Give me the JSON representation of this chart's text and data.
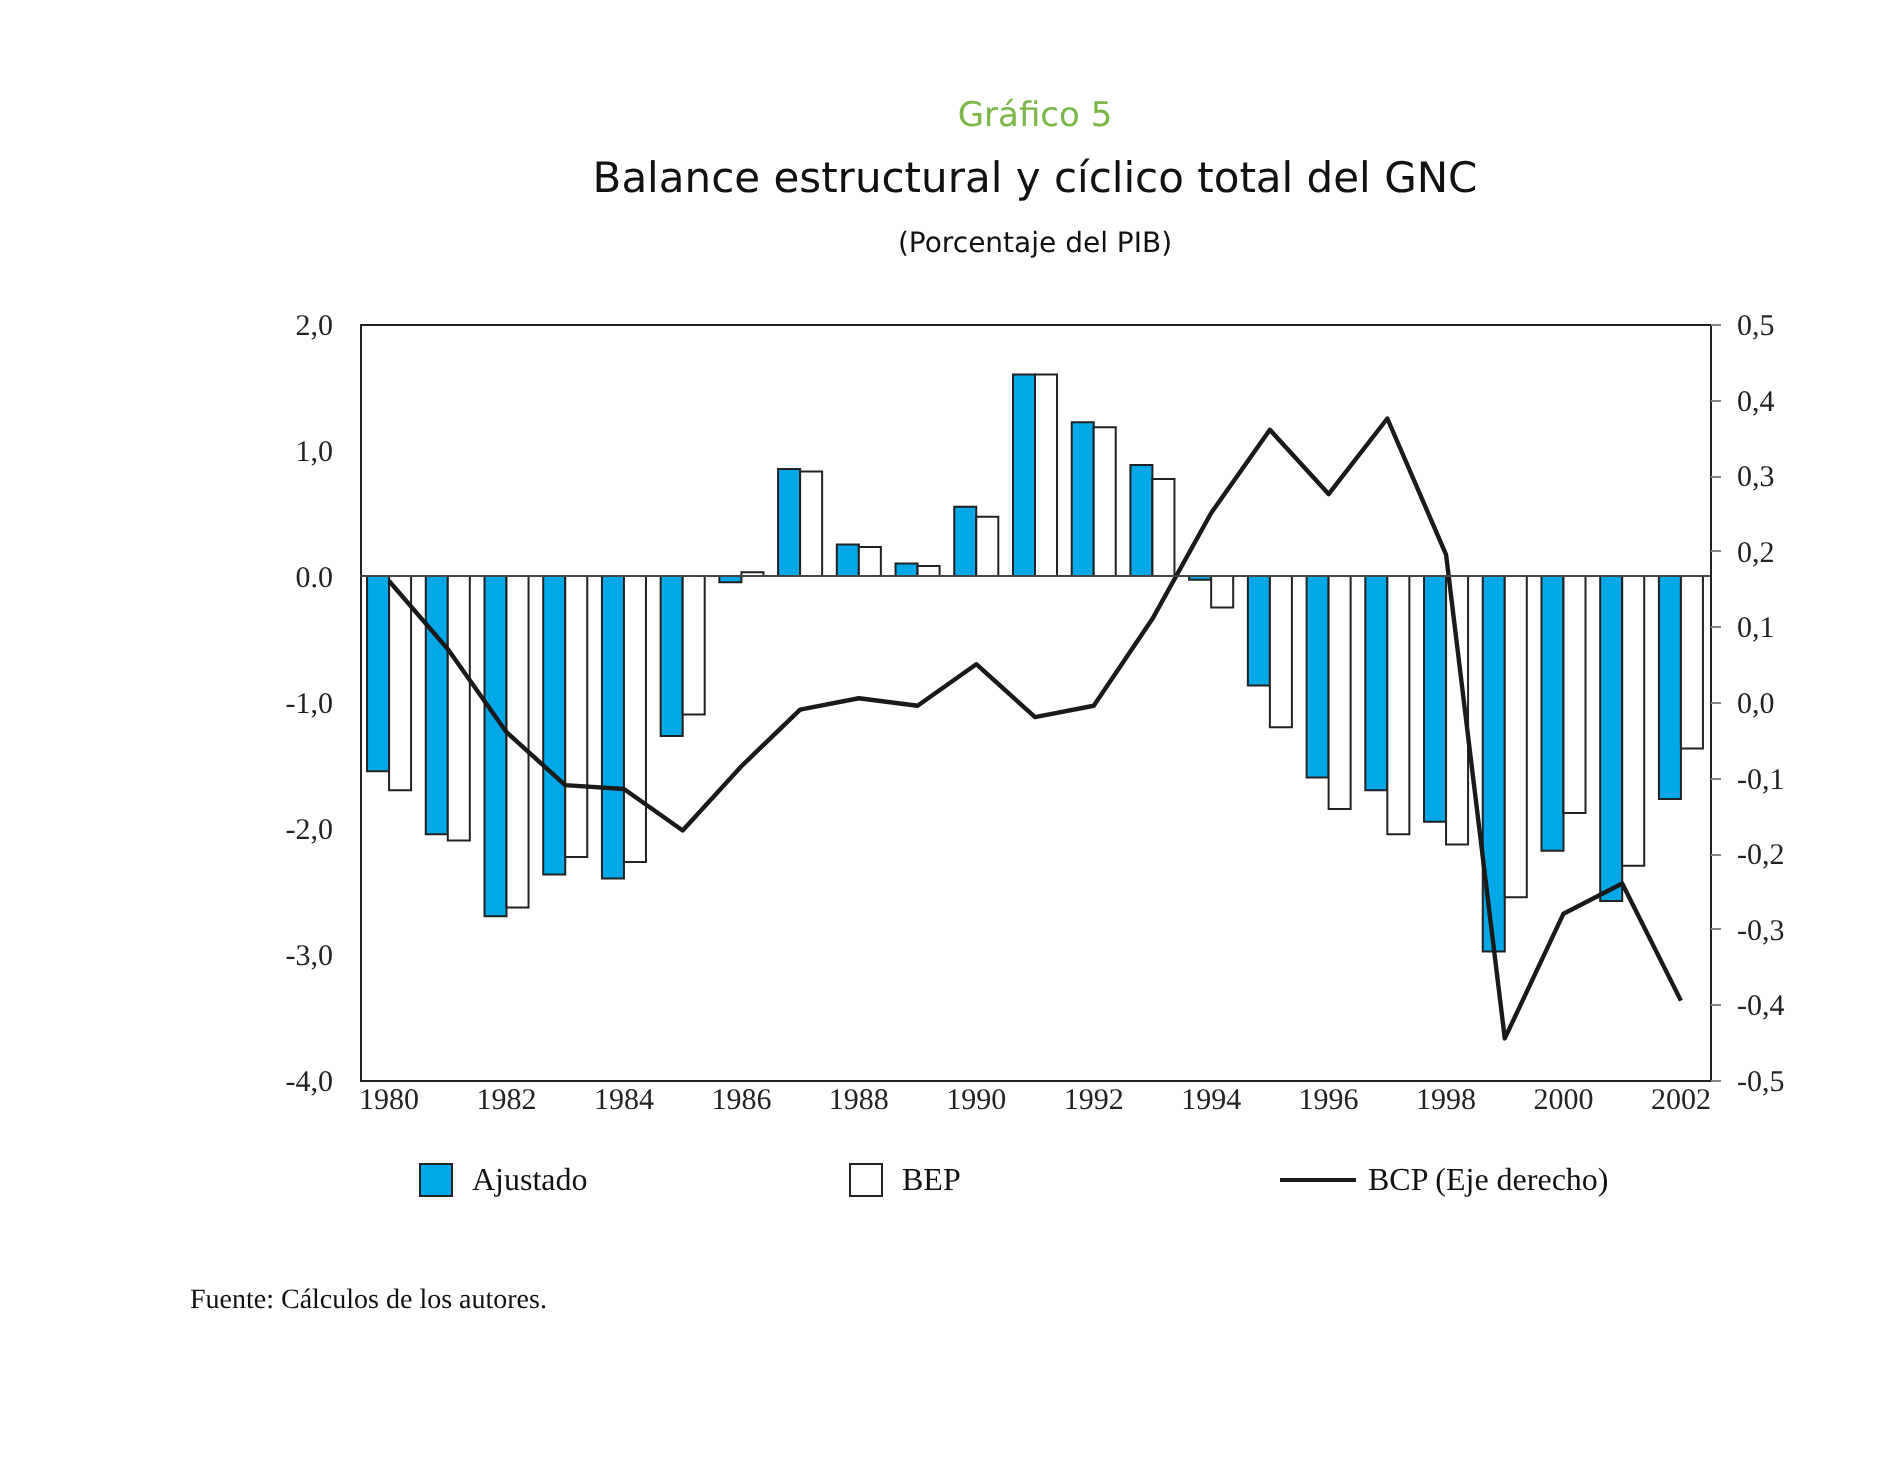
{
  "chart_data": {
    "type": "bar",
    "title": "Gráfico 5",
    "subtitle": "Balance estructural y cíclico total del GNC",
    "annotations": [
      "(Porcentaje del PIB)",
      "Fuente: Cálculos de los autores."
    ],
    "categories": [
      "1980",
      null,
      "1982",
      null,
      "1984",
      null,
      "1986",
      null,
      "1988",
      null,
      "1990",
      null,
      "1992",
      null,
      "1994",
      null,
      "1996",
      null,
      "1998",
      null,
      "2000",
      null,
      "2002"
    ],
    "series": [
      {
        "name": "Ajustado",
        "color": "#00a8e8",
        "values": [
          -1.55,
          -2.05,
          -2.7,
          -2.37,
          -2.4,
          -1.27,
          -0.05,
          0.85,
          0.25,
          0.1,
          0.55,
          1.6,
          1.22,
          0.88,
          -0.03,
          -0.87,
          -1.6,
          -1.7,
          -1.95,
          -2.98,
          -2.18,
          -2.58,
          -1.77
        ]
      },
      {
        "name": "BEP",
        "color": "#ffffff",
        "values": [
          -1.7,
          -2.1,
          -2.63,
          -2.23,
          -2.27,
          -1.1,
          0.03,
          0.83,
          0.23,
          0.08,
          0.47,
          1.6,
          1.18,
          0.77,
          -0.25,
          -1.2,
          -1.85,
          -2.05,
          -2.13,
          -2.55,
          -1.88,
          -2.3,
          -1.37
        ]
      },
      {
        "name": "BCP (Eje derecho)",
        "type": "line",
        "axis": "y2",
        "color": "#1a1a1a",
        "values": [
          0.16,
          0.07,
          -0.04,
          -0.11,
          -0.115,
          -0.17,
          -0.085,
          -0.01,
          0.005,
          -0.005,
          0.05,
          -0.02,
          -0.005,
          0.11,
          0.25,
          0.36,
          0.275,
          0.375,
          0.195,
          -0.445,
          -0.28,
          -0.24,
          -0.395
        ]
      }
    ],
    "ylim": [
      -4,
      2
    ],
    "yticks": [
      {
        "value": -4,
        "label": "-4,0"
      },
      {
        "value": -3,
        "label": "-3,0"
      },
      {
        "value": -2,
        "label": "-2,0"
      },
      {
        "value": -1,
        "label": "-1,0"
      },
      {
        "value": 0,
        "label": "0.0"
      },
      {
        "value": 1,
        "label": "1,0"
      },
      {
        "value": 2,
        "label": "2,0"
      }
    ],
    "y2lim": [
      -0.5,
      0.5
    ],
    "y2ticks": [
      {
        "value": -0.5,
        "label": "-0,5"
      },
      {
        "value": -0.4,
        "label": "-0,4"
      },
      {
        "value": -0.3,
        "label": "-0,3"
      },
      {
        "value": -0.2,
        "label": "-0,2"
      },
      {
        "value": -0.1,
        "label": "-0,1"
      },
      {
        "value": 0,
        "label": "0,0"
      },
      {
        "value": 0.1,
        "label": "0,1"
      },
      {
        "value": 0.2,
        "label": "0,2"
      },
      {
        "value": 0.3,
        "label": "0,3"
      },
      {
        "value": 0.4,
        "label": "0,4"
      },
      {
        "value": 0.5,
        "label": "0,5"
      }
    ],
    "ref_lines": [
      {
        "axis": "y",
        "value": 0,
        "color": "#444444",
        "line_style": "solid"
      }
    ],
    "grid": false,
    "legend": "bottom",
    "line_style": "solid",
    "marker": "none"
  }
}
